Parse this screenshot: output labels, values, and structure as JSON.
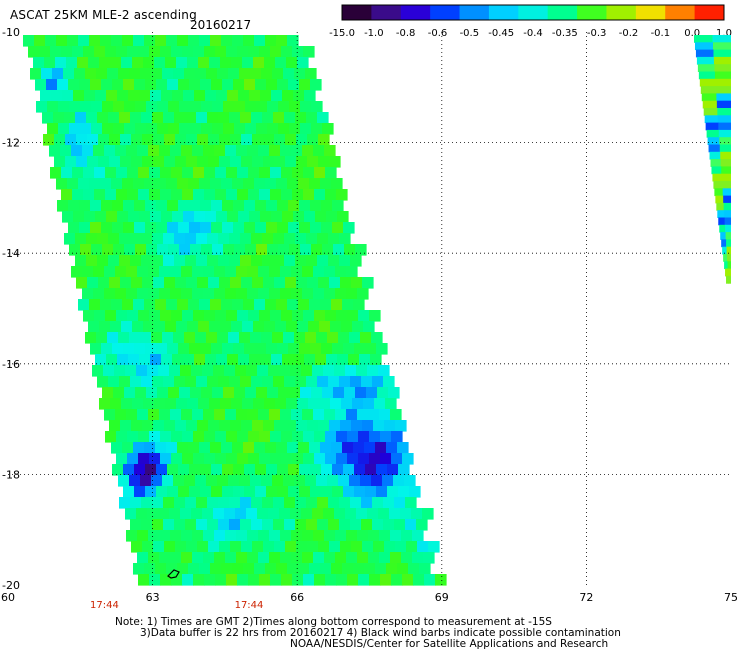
{
  "header": {
    "title": "ASCAT 25KM MLE-2 ascending",
    "date": "20160217"
  },
  "colorbar": {
    "labels": [
      "-15.0",
      "-1.0",
      "-0.8",
      "-0.6",
      "-0.5",
      "-0.45",
      "-0.4",
      "-0.35",
      "-0.3",
      "-0.2",
      "-0.1",
      "0.0",
      "1.0"
    ],
    "colors": [
      "#2a0038",
      "#3a0b8a",
      "#2a00d8",
      "#0040ff",
      "#0090ff",
      "#00d0ff",
      "#00f0e0",
      "#00ff90",
      "#40ff20",
      "#a0f000",
      "#f0e000",
      "#ff8000",
      "#ff2000"
    ]
  },
  "axes": {
    "x_ticks": [
      "60",
      "63",
      "66",
      "69",
      "72",
      "75"
    ],
    "y_ticks": [
      "-10",
      "-12",
      "-14",
      "-16",
      "-18",
      "-20"
    ],
    "x_range": [
      60,
      75
    ],
    "y_range": [
      -20,
      -10
    ],
    "time_labels": [
      "17:44",
      "17:44"
    ],
    "time_label_lons": [
      62,
      65
    ],
    "time_label_color": "#cc2200"
  },
  "notes": {
    "line1": "Note: 1) Times are GMT 2)Times along bottom correspond to measurement at -15S",
    "line2": "3)Data buffer is 22 hrs from 20160217 4) Black wind barbs indicate possible contamination",
    "line3": "NOAA/NESDIS/Center for Satellite Applications and Research"
  }
}
